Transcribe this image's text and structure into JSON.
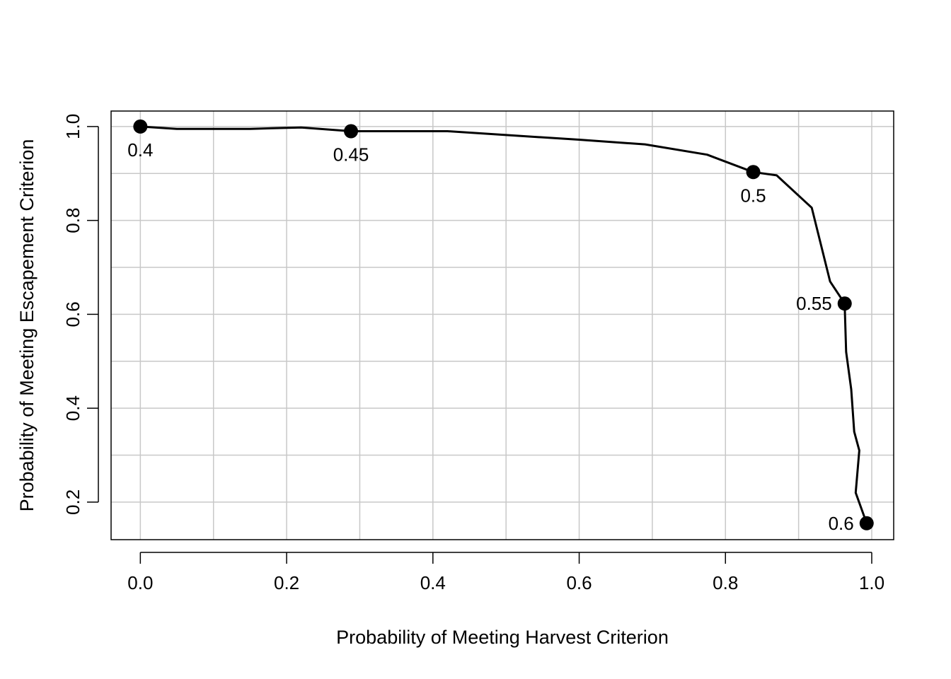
{
  "chart_data": {
    "type": "line",
    "title": "",
    "xlabel": "Probability of Meeting Harvest Criterion",
    "ylabel": "Probability of Meeting Escapement Criterion",
    "xlim": [
      -0.04,
      1.03
    ],
    "ylim": [
      0.12,
      1.033
    ],
    "grid": true,
    "x_ticks": [
      0.0,
      0.2,
      0.4,
      0.6,
      0.8,
      1.0
    ],
    "x_tick_labels": [
      "0.0",
      "0.2",
      "0.4",
      "0.6",
      "0.8",
      "1.0"
    ],
    "y_ticks": [
      0.2,
      0.4,
      0.6,
      0.8,
      1.0
    ],
    "y_tick_labels": [
      "0.2",
      "0.4",
      "0.6",
      "0.8",
      "1.0"
    ],
    "x_grid": [
      0.0,
      0.1,
      0.2,
      0.3,
      0.4,
      0.5,
      0.6,
      0.7,
      0.8,
      0.9,
      1.0
    ],
    "y_grid": [
      0.2,
      0.3,
      0.4,
      0.5,
      0.6,
      0.7,
      0.8,
      0.9,
      1.0
    ],
    "series": [
      {
        "x": [
          0.0,
          0.05,
          0.15,
          0.22,
          0.288,
          0.35,
          0.42,
          0.5,
          0.6,
          0.69,
          0.775,
          0.838,
          0.87,
          0.918,
          0.943,
          0.963,
          0.965,
          0.972,
          0.976,
          0.983,
          0.978,
          0.993
        ],
        "y": [
          1.0,
          0.995,
          0.995,
          0.998,
          0.99,
          0.99,
          0.99,
          0.982,
          0.972,
          0.962,
          0.94,
          0.903,
          0.896,
          0.827,
          0.67,
          0.623,
          0.52,
          0.44,
          0.35,
          0.31,
          0.22,
          0.155
        ]
      }
    ],
    "markers": [
      {
        "x": 0.0,
        "y": 1.0,
        "label": "0.4",
        "label_pos": "below"
      },
      {
        "x": 0.288,
        "y": 0.99,
        "label": "0.45",
        "label_pos": "below"
      },
      {
        "x": 0.838,
        "y": 0.903,
        "label": "0.5",
        "label_pos": "below"
      },
      {
        "x": 0.963,
        "y": 0.623,
        "label": "0.55",
        "label_pos": "left"
      },
      {
        "x": 0.993,
        "y": 0.155,
        "label": "0.6",
        "label_pos": "left"
      }
    ],
    "colors": {
      "line": "#000000",
      "marker": "#000000",
      "grid": "#c8c8c8",
      "axis": "#000000"
    }
  }
}
